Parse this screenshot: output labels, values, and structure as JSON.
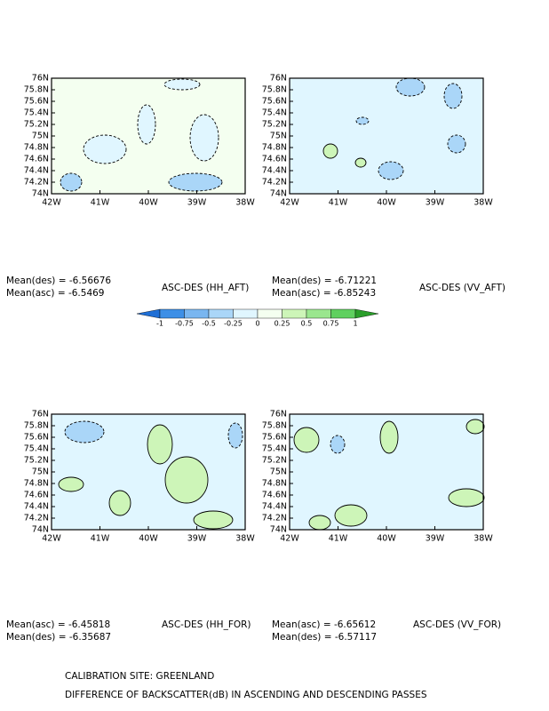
{
  "axes": {
    "xticks": [
      "42W",
      "41W",
      "40W",
      "39W",
      "38W"
    ],
    "yticks": [
      "76N",
      "75.8N",
      "75.6N",
      "75.4N",
      "75.2N",
      "75N",
      "74.8N",
      "74.6N",
      "74.4N",
      "74.2N",
      "74N"
    ]
  },
  "panels": [
    {
      "title": "ASC-DES (HH_AFT)",
      "stats": [
        "Mean(des) = -6.56676",
        "Mean(asc) = -6.5469"
      ]
    },
    {
      "title": "ASC-DES (VV_AFT)",
      "stats": [
        "Mean(des) = -6.71221",
        "Mean(asc) = -6.85243"
      ]
    },
    {
      "title": "ASC-DES (HH_FOR)",
      "stats": [
        "Mean(asc) = -6.45818",
        "Mean(des) = -6.35687"
      ]
    },
    {
      "title": "ASC-DES (VV_FOR)",
      "stats": [
        "Mean(asc) = -6.65612",
        "Mean(des) = -6.57117"
      ]
    }
  ],
  "legend": {
    "labels": [
      "-1",
      "-0.75",
      "-0.5",
      "-0.25",
      "0",
      "0.25",
      "0.5",
      "0.75",
      "1"
    ],
    "colors": [
      "#1f6fd6",
      "#3d8fe6",
      "#79b6f0",
      "#aad6f8",
      "#e0f6ff",
      "#f4fff0",
      "#cdf5b8",
      "#9ae68e",
      "#5fd05f",
      "#2a9e2a"
    ]
  },
  "footer": {
    "site": "CALIBRATION SITE: GREENLAND",
    "caption": "DIFFERENCE OF BACKSCATTER(dB) IN ASCENDING AND DESCENDING PASSES"
  }
}
